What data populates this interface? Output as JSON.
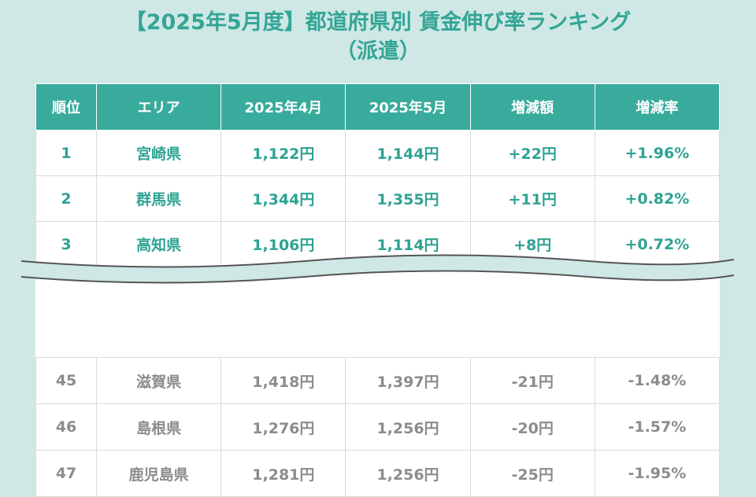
{
  "title": {
    "line1": "【2025年5月度】都道府県別 賃金伸び率ランキング",
    "line2": "（派遣）"
  },
  "table": {
    "headers": [
      "順位",
      "エリア",
      "2025年4月",
      "2025年5月",
      "増減額",
      "増減率"
    ],
    "top_rows": [
      [
        "1",
        "宮崎県",
        "1,122円",
        "1,144円",
        "+22円",
        "+1.96%"
      ],
      [
        "2",
        "群馬県",
        "1,344円",
        "1,355円",
        "+11円",
        "+0.82%"
      ],
      [
        "3",
        "高知県",
        "1,106円",
        "1,114円",
        "+8円",
        "+0.72%"
      ]
    ],
    "bottom_rows": [
      [
        "45",
        "滋賀県",
        "1,418円",
        "1,397円",
        "-21円",
        "-1.48%"
      ],
      [
        "46",
        "島根県",
        "1,276円",
        "1,256円",
        "-20円",
        "-1.57%"
      ],
      [
        "47",
        "鹿児島県",
        "1,281円",
        "1,256円",
        "-25円",
        "-1.95%"
      ]
    ]
  },
  "colors": {
    "background": "#cfe8e5",
    "accent": "#38ab9c",
    "top_text": "#2ea393",
    "bottom_text": "#8c8c8c"
  }
}
